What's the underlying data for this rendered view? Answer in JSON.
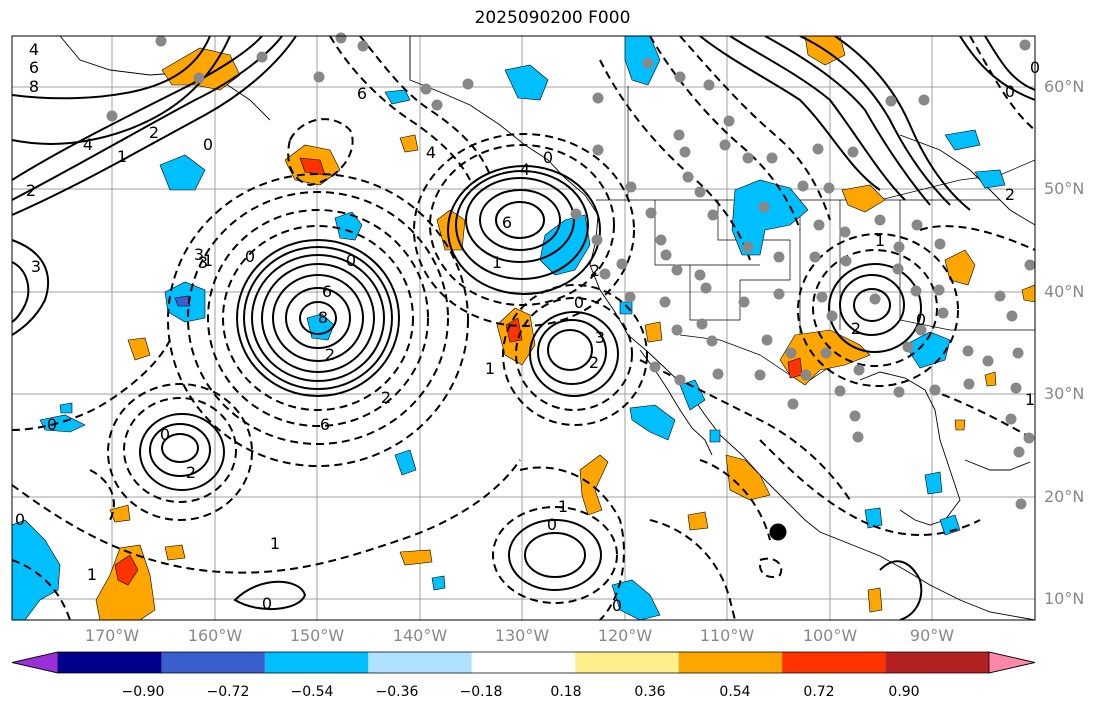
{
  "title": "2025090200 F000",
  "lat_labels": [
    "60°N",
    "50°N",
    "40°N",
    "30°N",
    "20°N",
    "10°N"
  ],
  "lon_labels": [
    "170°W",
    "160°W",
    "150°W",
    "140°W",
    "130°W",
    "120°W",
    "110°W",
    "100°W",
    "90°W"
  ],
  "colorbar": {
    "ticks": [
      "−0.90",
      "−0.72",
      "−0.54",
      "−0.36",
      "−0.18",
      "0.18",
      "0.36",
      "0.54",
      "0.72",
      "0.90"
    ],
    "colors": [
      "#9b30d9",
      "#00008b",
      "#3a5fcd",
      "#00bfff",
      "#b0e2ff",
      "#ffffff",
      "#ffee8c",
      "#ffa500",
      "#ff3300",
      "#b22222",
      "#ff88aa"
    ]
  },
  "contour_labels": [
    "4",
    "6",
    "8",
    "4",
    "2",
    "0",
    "2",
    "1",
    "6",
    "6",
    "0",
    "1",
    "3",
    "0",
    "2",
    "3",
    "0",
    "6",
    "0",
    "4",
    "6",
    "1",
    "0",
    "8",
    "3",
    "2",
    "2",
    "2",
    "0",
    "1",
    "1",
    "0",
    "1",
    "0",
    "0",
    "1",
    "0",
    "4",
    "2",
    "3",
    "0",
    "1",
    "2",
    "0",
    "2",
    "1",
    "0"
  ]
}
